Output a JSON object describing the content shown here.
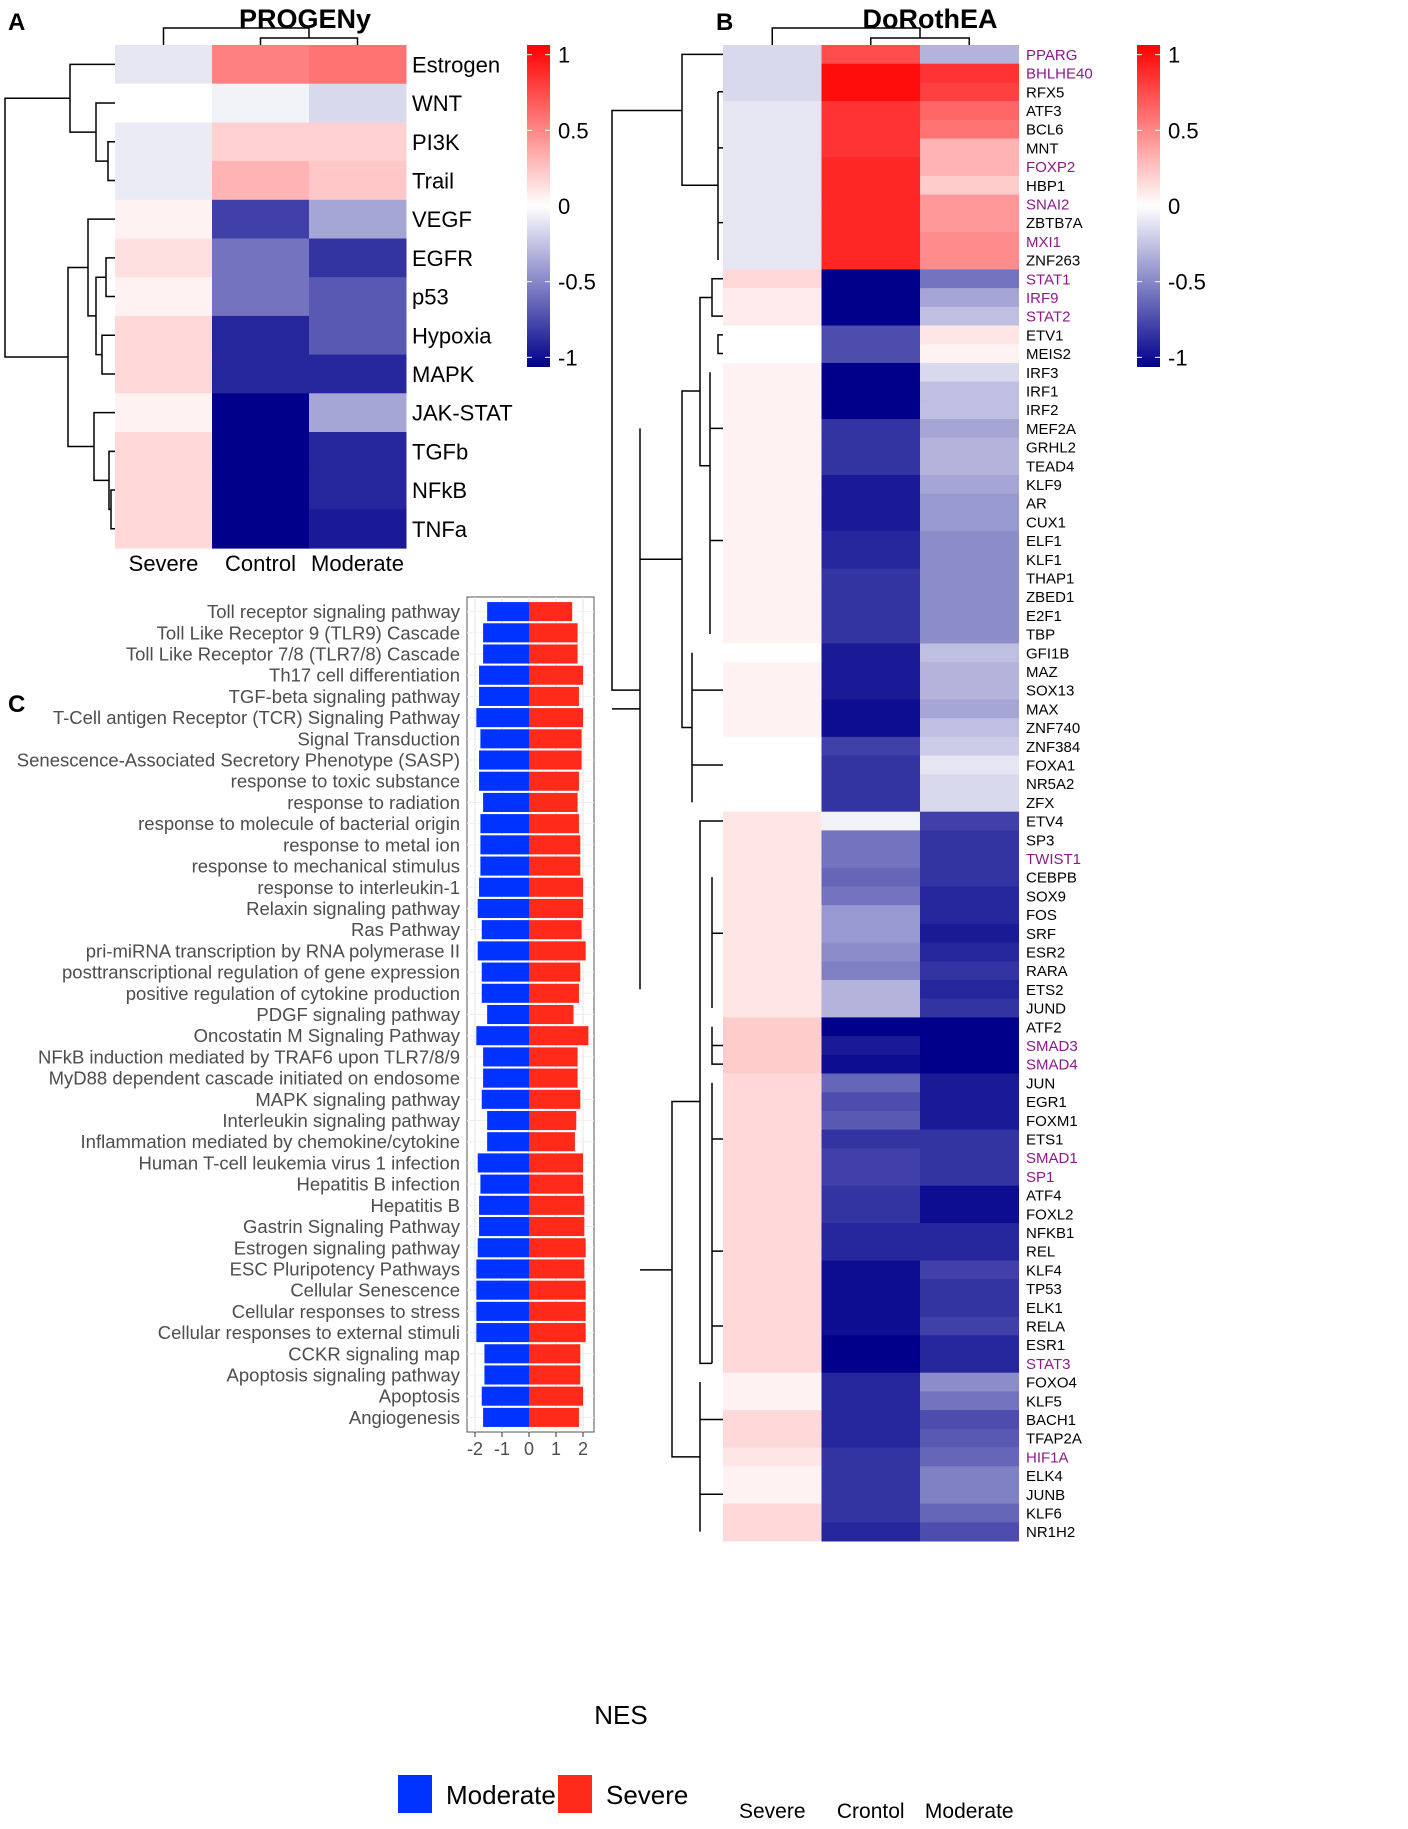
{
  "figure": {
    "panel_a": {
      "letter": "A",
      "title": "PROGENy",
      "columns": [
        "Severe",
        "Control",
        "Moderate"
      ],
      "rows": [
        "Estrogen",
        "WNT",
        "PI3K",
        "Trail",
        "VEGF",
        "EGFR",
        "p53",
        "Hypoxia",
        "MAPK",
        "JAK-STAT",
        "TGFb",
        "NFkB",
        "TNFa"
      ],
      "colorbar_ticks": [
        "1",
        "0.5",
        "0",
        "-0.5",
        "-1"
      ]
    },
    "panel_b": {
      "letter": "B",
      "title": "DoRothEA",
      "columns": [
        "Severe",
        "Crontol",
        "Moderate"
      ],
      "highlight_color": "#8B1A89",
      "colorbar_ticks": [
        "1",
        "0.5",
        "0",
        "-0.5",
        "-1"
      ]
    },
    "panel_c": {
      "letter": "C",
      "xlabel": "NES",
      "xticks": [
        "-2",
        "-1",
        "0",
        "1",
        "2"
      ],
      "legend": [
        {
          "label": "Moderate",
          "color": "#0033FF"
        },
        {
          "label": "Severe",
          "color": "#FF2A1A"
        }
      ]
    }
  },
  "chart_data": [
    {
      "type": "heatmap",
      "title": "PROGENy",
      "columns": [
        "Severe",
        "Control",
        "Moderate"
      ],
      "rows": [
        "Estrogen",
        "WNT",
        "PI3K",
        "Trail",
        "VEGF",
        "EGFR",
        "p53",
        "Hypoxia",
        "MAPK",
        "JAK-STAT",
        "TGFb",
        "NFkB",
        "TNFa"
      ],
      "values": [
        [
          -0.1,
          0.5,
          0.55
        ],
        [
          0.0,
          -0.05,
          -0.15
        ],
        [
          -0.08,
          0.18,
          0.18
        ],
        [
          -0.08,
          0.3,
          0.22
        ],
        [
          0.05,
          -0.75,
          -0.35
        ],
        [
          0.12,
          -0.55,
          -0.8
        ],
        [
          0.05,
          -0.55,
          -0.65
        ],
        [
          0.15,
          -0.85,
          -0.65
        ],
        [
          0.15,
          -0.85,
          -0.85
        ],
        [
          0.05,
          -1.0,
          -0.35
        ],
        [
          0.15,
          -1.0,
          -0.85
        ],
        [
          0.15,
          -1.0,
          -0.85
        ],
        [
          0.15,
          -1.0,
          -0.9
        ]
      ],
      "colorbar_range": [
        -1,
        1
      ]
    },
    {
      "type": "heatmap",
      "title": "DoRothEA",
      "columns": [
        "Severe",
        "Crontol",
        "Moderate"
      ],
      "rows": [
        "PPARG",
        "BHLHE40",
        "RFX5",
        "ATF3",
        "BCL6",
        "MNT",
        "FOXP2",
        "HBP1",
        "SNAI2",
        "ZBTB7A",
        "MXI1",
        "ZNF263",
        "STAT1",
        "IRF9",
        "STAT2",
        "ETV1",
        "MEIS2",
        "IRF3",
        "IRF1",
        "IRF2",
        "MEF2A",
        "GRHL2",
        "TEAD4",
        "KLF9",
        "AR",
        "CUX1",
        "ELF1",
        "KLF1",
        "THAP1",
        "ZBED1",
        "E2F1",
        "TBP",
        "GFI1B",
        "MAZ",
        "SOX13",
        "MAX",
        "ZNF740",
        "ZNF384",
        "FOXA1",
        "NR5A2",
        "ZFX",
        "ETV4",
        "SP3",
        "TWIST1",
        "CEBPB",
        "SOX9",
        "FOS",
        "SRF",
        "ESR2",
        "RARA",
        "ETS2",
        "JUND",
        "ATF2",
        "SMAD3",
        "SMAD4",
        "JUN",
        "EGR1",
        "FOXM1",
        "ETS1",
        "SMAD1",
        "SP1",
        "ATF4",
        "FOXL2",
        "NFKB1",
        "REL",
        "KLF4",
        "TP53",
        "ELK1",
        "RELA",
        "ESR1",
        "STAT3",
        "FOXO4",
        "KLF5",
        "BACH1",
        "TFAP2A",
        "HIF1A",
        "ELK4",
        "JUNB",
        "KLF6",
        "NR1H2"
      ],
      "highlighted": [
        "PPARG",
        "BHLHE40",
        "FOXP2",
        "SNAI2",
        "MXI1",
        "STAT1",
        "IRF9",
        "STAT2",
        "TWIST1",
        "SMAD3",
        "SMAD4",
        "SMAD1",
        "SP1",
        "STAT3",
        "HIF1A"
      ],
      "values": [
        [
          -0.15,
          0.7,
          -0.3
        ],
        [
          -0.15,
          0.95,
          0.8
        ],
        [
          -0.15,
          0.95,
          0.75
        ],
        [
          -0.1,
          0.8,
          0.6
        ],
        [
          -0.1,
          0.8,
          0.55
        ],
        [
          -0.1,
          0.8,
          0.3
        ],
        [
          -0.1,
          0.85,
          0.3
        ],
        [
          -0.1,
          0.85,
          0.2
        ],
        [
          -0.1,
          0.85,
          0.4
        ],
        [
          -0.1,
          0.85,
          0.4
        ],
        [
          -0.1,
          0.85,
          0.45
        ],
        [
          -0.1,
          0.85,
          0.45
        ],
        [
          0.15,
          -1.0,
          -0.55
        ],
        [
          0.08,
          -1.0,
          -0.35
        ],
        [
          0.08,
          -1.0,
          -0.25
        ],
        [
          0.0,
          -0.7,
          0.1
        ],
        [
          0.0,
          -0.7,
          0.05
        ],
        [
          0.05,
          -1.0,
          -0.15
        ],
        [
          0.05,
          -1.0,
          -0.25
        ],
        [
          0.05,
          -1.0,
          -0.25
        ],
        [
          0.05,
          -0.8,
          -0.35
        ],
        [
          0.05,
          -0.8,
          -0.3
        ],
        [
          0.05,
          -0.8,
          -0.3
        ],
        [
          0.05,
          -0.9,
          -0.35
        ],
        [
          0.05,
          -0.9,
          -0.4
        ],
        [
          0.05,
          -0.9,
          -0.4
        ],
        [
          0.05,
          -0.85,
          -0.45
        ],
        [
          0.05,
          -0.85,
          -0.45
        ],
        [
          0.05,
          -0.8,
          -0.45
        ],
        [
          0.05,
          -0.8,
          -0.45
        ],
        [
          0.05,
          -0.8,
          -0.45
        ],
        [
          0.05,
          -0.8,
          -0.45
        ],
        [
          0.0,
          -0.9,
          -0.25
        ],
        [
          0.05,
          -0.9,
          -0.3
        ],
        [
          0.05,
          -0.9,
          -0.3
        ],
        [
          0.05,
          -0.95,
          -0.35
        ],
        [
          0.05,
          -0.95,
          -0.25
        ],
        [
          0.0,
          -0.75,
          -0.2
        ],
        [
          0.0,
          -0.8,
          -0.1
        ],
        [
          0.0,
          -0.8,
          -0.15
        ],
        [
          0.0,
          -0.8,
          -0.15
        ],
        [
          0.1,
          -0.05,
          -0.75
        ],
        [
          0.1,
          -0.55,
          -0.8
        ],
        [
          0.1,
          -0.55,
          -0.8
        ],
        [
          0.1,
          -0.6,
          -0.8
        ],
        [
          0.1,
          -0.55,
          -0.85
        ],
        [
          0.1,
          -0.4,
          -0.85
        ],
        [
          0.1,
          -0.4,
          -0.9
        ],
        [
          0.1,
          -0.45,
          -0.85
        ],
        [
          0.1,
          -0.5,
          -0.8
        ],
        [
          0.1,
          -0.3,
          -0.85
        ],
        [
          0.1,
          -0.3,
          -0.8
        ],
        [
          0.2,
          -1.0,
          -1.0
        ],
        [
          0.2,
          -0.9,
          -1.0
        ],
        [
          0.2,
          -0.95,
          -1.0
        ],
        [
          0.15,
          -0.6,
          -0.9
        ],
        [
          0.15,
          -0.7,
          -0.9
        ],
        [
          0.15,
          -0.65,
          -0.9
        ],
        [
          0.15,
          -0.8,
          -0.8
        ],
        [
          0.15,
          -0.75,
          -0.8
        ],
        [
          0.15,
          -0.75,
          -0.8
        ],
        [
          0.15,
          -0.8,
          -0.95
        ],
        [
          0.15,
          -0.8,
          -0.95
        ],
        [
          0.15,
          -0.85,
          -0.85
        ],
        [
          0.15,
          -0.85,
          -0.85
        ],
        [
          0.15,
          -0.95,
          -0.75
        ],
        [
          0.15,
          -0.95,
          -0.8
        ],
        [
          0.15,
          -0.95,
          -0.8
        ],
        [
          0.15,
          -0.95,
          -0.75
        ],
        [
          0.15,
          -1.0,
          -0.85
        ],
        [
          0.15,
          -1.0,
          -0.85
        ],
        [
          0.05,
          -0.85,
          -0.45
        ],
        [
          0.05,
          -0.85,
          -0.55
        ],
        [
          0.15,
          -0.85,
          -0.7
        ],
        [
          0.15,
          -0.85,
          -0.65
        ],
        [
          0.1,
          -0.8,
          -0.6
        ],
        [
          0.05,
          -0.8,
          -0.5
        ],
        [
          0.05,
          -0.8,
          -0.5
        ],
        [
          0.15,
          -0.8,
          -0.6
        ],
        [
          0.15,
          -0.85,
          -0.7
        ]
      ],
      "colorbar_range": [
        -1,
        1
      ]
    },
    {
      "type": "bar",
      "orientation": "horizontal",
      "xlabel": "NES",
      "xlim": [
        -2.3,
        2.3
      ],
      "categories": [
        "Toll receptor signaling pathway",
        "Toll Like Receptor 9 (TLR9) Cascade",
        "Toll Like Receptor 7/8 (TLR7/8) Cascade",
        "Th17 cell differentiation",
        "TGF-beta signaling pathway",
        "T-Cell antigen Receptor (TCR)  Signaling Pathway",
        "Signal Transduction",
        "Senescence-Associated Secretory Phenotype (SASP)",
        "response to toxic substance",
        "response to radiation",
        "response to molecule of bacterial origin",
        "response to metal ion",
        "response to mechanical stimulus",
        "response to interleukin-1",
        "Relaxin signaling pathway",
        "Ras Pathway",
        "pri-miRNA transcription by RNA polymerase II",
        "posttranscriptional regulation of gene expression",
        "positive regulation of cytokine production",
        "PDGF signaling pathway",
        "Oncostatin M Signaling Pathway",
        "NFkB induction mediated by TRAF6 upon TLR7/8/9",
        "MyD88 dependent cascade initiated on endosome",
        "MAPK signaling pathway",
        "Interleukin signaling pathway",
        "Inflammation mediated by chemokine/cytokine",
        "Human T-cell leukemia virus 1 infection",
        "Hepatitis B infection",
        "Hepatitis B",
        "Gastrin Signaling Pathway",
        "Estrogen signaling pathway",
        "ESC Pluripotency Pathways",
        "Cellular Senescence",
        "Cellular responses to stress",
        "Cellular responses to external stimuli",
        "CCKR signaling map",
        "Apoptosis signaling pathway",
        "Apoptosis",
        "Angiogenesis"
      ],
      "series": [
        {
          "name": "Moderate",
          "values": [
            -1.55,
            -1.7,
            -1.7,
            -1.85,
            -1.85,
            -1.95,
            -1.8,
            -1.85,
            -1.85,
            -1.7,
            -1.8,
            -1.8,
            -1.8,
            -1.85,
            -1.9,
            -1.75,
            -1.9,
            -1.75,
            -1.75,
            -1.55,
            -1.95,
            -1.7,
            -1.7,
            -1.75,
            -1.55,
            -1.55,
            -1.9,
            -1.8,
            -1.85,
            -1.85,
            -1.9,
            -1.95,
            -1.95,
            -1.95,
            -1.95,
            -1.65,
            -1.65,
            -1.75,
            -1.7
          ]
        },
        {
          "name": "Severe",
          "values": [
            1.6,
            1.8,
            1.8,
            2.0,
            1.85,
            2.0,
            1.95,
            1.95,
            1.85,
            1.8,
            1.85,
            1.9,
            1.9,
            2.0,
            2.0,
            1.95,
            2.1,
            1.9,
            1.85,
            1.65,
            2.2,
            1.8,
            1.8,
            1.9,
            1.75,
            1.7,
            2.0,
            2.0,
            2.05,
            2.05,
            2.1,
            2.05,
            2.1,
            2.1,
            2.1,
            1.9,
            1.9,
            2.0,
            1.85
          ]
        }
      ]
    }
  ]
}
